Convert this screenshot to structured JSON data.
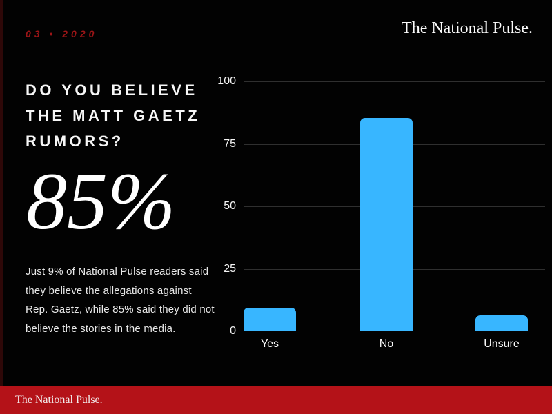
{
  "header": {
    "date_label": "03 • 2020",
    "brand": "The National Pulse."
  },
  "headline": {
    "title": "DO YOU BELIEVE THE MATT GAETZ RUMORS?",
    "title_lines": [
      "DO YOU BELIEVE",
      "THE MATT GAETZ",
      "RUMORS?"
    ],
    "stat_value": "85%",
    "description": "Just 9% of National Pulse readers said they believe the allegations against Rep. Gaetz, while 85% said they did not believe the stories in the media.",
    "description_lines": [
      "Just 9% of National Pulse readers said",
      "they believe the allegations against",
      "Rep. Gaetz, while 85% said they did not",
      "believe the stories in the media."
    ]
  },
  "footer": {
    "brand": "The National Pulse."
  },
  "chart_data": {
    "type": "bar",
    "categories": [
      "Yes",
      "No",
      "Unsure"
    ],
    "values": [
      9,
      85,
      6
    ],
    "title": "",
    "xlabel": "",
    "ylabel": "",
    "ylim": [
      0,
      100
    ],
    "yticks": [
      0,
      25,
      50,
      75,
      100
    ],
    "grid": true,
    "legend": false,
    "bar_color": "#38b6ff",
    "gridline_color": "#2f2f2f",
    "axis_line_color": "#4d4d4d",
    "tick_label_color": "#f5f5f5"
  },
  "colors": {
    "background": "#020202",
    "left_strip_red": "#2e0808",
    "footer_red": "#b41218",
    "date_red": "#9c1517",
    "stat_white": "#ffffff",
    "text_primary": "#f7f7f7",
    "text_secondary": "#e8e8e8",
    "bar_blue": "#38b6ff"
  }
}
